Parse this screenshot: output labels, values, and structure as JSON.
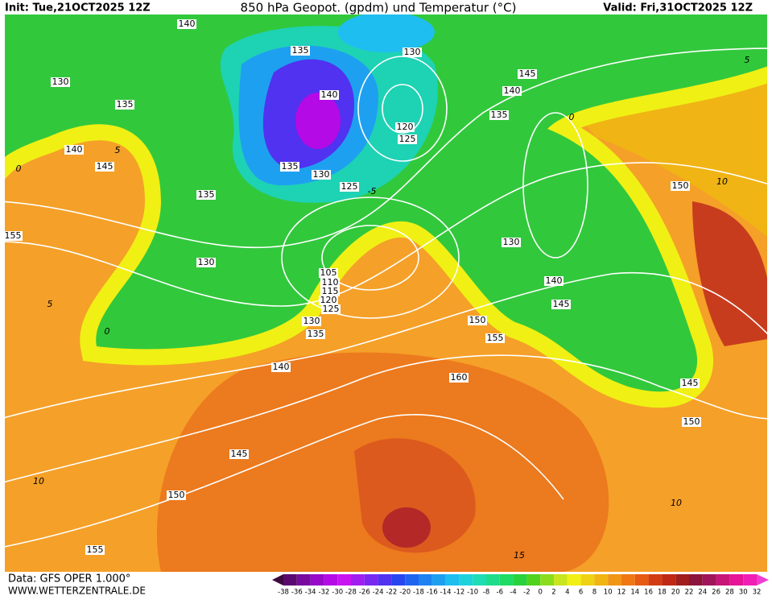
{
  "header": {
    "init": "Init: Tue,21OCT2025 12Z",
    "title": "850 hPa Geopot. (gpdm) und Temperatur (°C)",
    "valid": "Valid: Fri,31OCT2025 12Z"
  },
  "footer": {
    "data": "Data: GFS OPER 1.000°",
    "site": "WWW.WETTERZENTRALE.DE"
  },
  "colorbar": {
    "ticks": [
      -38,
      -36,
      -34,
      -32,
      -30,
      -28,
      -26,
      -24,
      -22,
      -20,
      -18,
      -16,
      -14,
      -12,
      -10,
      -8,
      -6,
      -4,
      -2,
      0,
      2,
      4,
      6,
      8,
      10,
      12,
      14,
      16,
      18,
      20,
      22,
      24,
      26,
      28,
      30,
      32
    ],
    "colors": [
      "#3c0a3c",
      "#5a0a6e",
      "#780aa0",
      "#960ac8",
      "#b40ae6",
      "#c814f0",
      "#a01ef0",
      "#7828f0",
      "#5032f0",
      "#2846f0",
      "#1e64f0",
      "#1e82f0",
      "#1ea0f0",
      "#1ebef0",
      "#1ed2dc",
      "#1edcb4",
      "#1edc8c",
      "#1edc64",
      "#28d23c",
      "#50d21e",
      "#8cdc1e",
      "#c8e61e",
      "#f0f014",
      "#f0d214",
      "#f0b414",
      "#f09614",
      "#f07814",
      "#e65a14",
      "#d23c14",
      "#be2814",
      "#a01e1e",
      "#8c143c",
      "#a0145a",
      "#c81478",
      "#e61496",
      "#f01eb4",
      "#f03cd2"
    ]
  },
  "contour_labels": [
    140,
    135,
    130,
    145,
    130,
    135,
    140,
    140,
    135,
    120,
    125,
    140,
    145,
    135,
    130,
    125,
    135,
    150,
    155,
    130,
    130,
    105,
    110,
    115,
    120,
    125,
    130,
    135,
    140,
    145,
    150,
    155,
    140,
    160,
    145,
    150,
    145,
    150,
    155
  ],
  "temperature_labels": [
    0,
    5,
    0,
    5,
    10,
    10,
    15,
    10,
    5,
    0,
    -5
  ]
}
